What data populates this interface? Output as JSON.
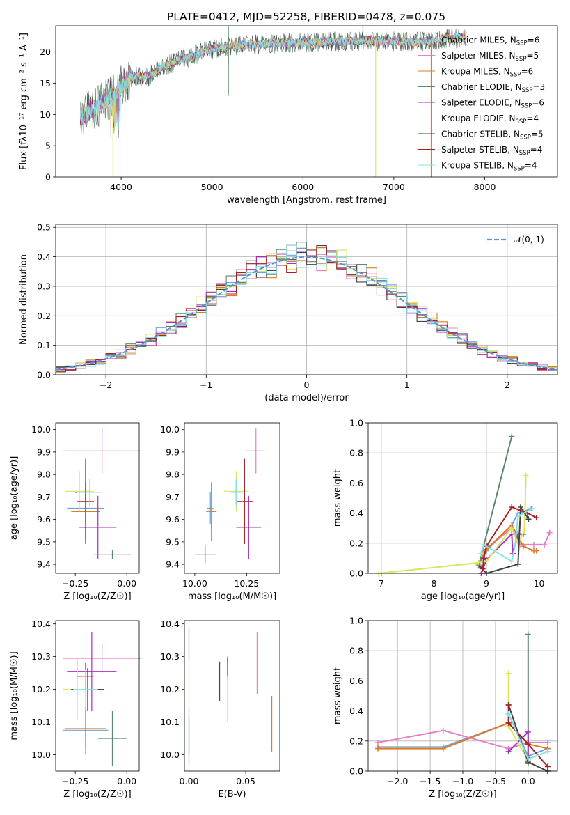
{
  "colors": {
    "Chabrier MILES": "#6ea0dc",
    "Salpeter MILES": "#e57fc8",
    "Kroupa MILES": "#e07b20",
    "Chabrier ELODIE": "#5a8a6e",
    "Salpeter ELODIE": "#a52ec2",
    "Kroupa ELODIE": "#d8e65a",
    "Chabrier STELIB": "#444444",
    "Salpeter STELIB": "#a81f22",
    "Kroupa STELIB": "#88e0e2",
    "grid": "#b0b0b0",
    "gauss": "#5b8fd8"
  },
  "chart_data": [
    {
      "id": "spectrum",
      "type": "line",
      "title": "PLATE=0412, MJD=52258, FIBERID=0478, z=0.075",
      "xlabel": "wavelength [Angstrom, rest frame]",
      "ylabel": "Flux [fλ10⁻¹⁷ erg cm⁻² s⁻¹ A⁻¹]",
      "xlim": [
        3280,
        8800
      ],
      "ylim": [
        0,
        24.2
      ],
      "xticks": [
        "4000",
        "5000",
        "6000",
        "7000",
        "8000"
      ],
      "yticks": [
        "0",
        "5",
        "10",
        "15",
        "20"
      ],
      "grid": false,
      "legend_position": "upper right",
      "legend": [
        {
          "label": "Chabrier MILES, N",
          "sub": "SSP",
          "post": "=6"
        },
        {
          "label": "Salpeter MILES, N",
          "sub": "SSP",
          "post": "=5"
        },
        {
          "label": "Kroupa MILES, N",
          "sub": "SSP",
          "post": "=6"
        },
        {
          "label": "Chabrier ELODIE, N",
          "sub": "SSP",
          "post": "=3"
        },
        {
          "label": "Salpeter ELODIE, N",
          "sub": "SSP",
          "post": "=6"
        },
        {
          "label": "Kroupa ELODIE, N",
          "sub": "SSP",
          "post": "=4"
        },
        {
          "label": "Chabrier STELIB, N",
          "sub": "SSP",
          "post": "=5"
        },
        {
          "label": "Salpeter STELIB, N",
          "sub": "SSP",
          "post": "=4"
        },
        {
          "label": "Kroupa STELIB, N",
          "sub": "SSP",
          "post": "=4"
        }
      ],
      "continuum": {
        "wavelength": [
          3550,
          3700,
          3850,
          3950,
          4050,
          4150,
          4300,
          4450,
          4600,
          4800,
          5000,
          5200,
          5400,
          5600,
          5800,
          6000,
          6200,
          6400,
          6600,
          6800,
          7000,
          7200,
          7400,
          7600,
          7800
        ],
        "flux": [
          9.5,
          11.0,
          12.5,
          13.2,
          15.5,
          16.2,
          16.0,
          17.5,
          18.5,
          19.5,
          20.5,
          21.0,
          21.2,
          21.3,
          21.4,
          21.5,
          21.6,
          21.7,
          21.8,
          21.8,
          21.7,
          21.6,
          21.8,
          22.2,
          22.3
        ]
      },
      "features": [
        {
          "wavelength": 3910,
          "flux": 0.0,
          "series": "Kroupa ELODIE"
        },
        {
          "wavelength": 5180,
          "flux": 13.0,
          "series": "Chabrier ELODIE"
        },
        {
          "wavelength": 6800,
          "flux": 0.0,
          "series": "Kroupa ELODIE"
        },
        {
          "wavelength": 7410,
          "flux": 0.0,
          "series": "Kroupa MILES"
        }
      ]
    },
    {
      "id": "residuals",
      "type": "histogram",
      "xlabel": "(data-model)/error",
      "ylabel": "Normed distribution",
      "xlim": [
        -2.5,
        2.5
      ],
      "ylim": [
        0,
        0.51
      ],
      "xticks": [
        "−2",
        "−1",
        "0",
        "1",
        "2"
      ],
      "yticks": [
        "0.0",
        "0.1",
        "0.2",
        "0.3",
        "0.4",
        "0.5"
      ],
      "grid": true,
      "bin_width": 0.1,
      "legend": [
        {
          "label": "𝒩(0, 1)"
        }
      ],
      "legend_position": "upper right"
    },
    {
      "id": "age_vs_Z",
      "type": "errorbar",
      "xlabel": "Z [log₁₀(Z/Z☉)]",
      "ylabel": "age  [log₁₀(age/yr)]",
      "xlim": [
        -0.345,
        0.06
      ],
      "ylim": [
        9.36,
        10.03
      ],
      "xticks": [
        "−0.25",
        "0.00"
      ],
      "yticks": [
        "9.4",
        "9.5",
        "9.6",
        "9.7",
        "9.8",
        "9.9",
        "10.0"
      ],
      "grid": false,
      "points": [
        {
          "series": "Chabrier MILES",
          "x": -0.2,
          "xerr": 0.09,
          "y": 9.65,
          "yerr": 0.07
        },
        {
          "series": "Salpeter MILES",
          "x": -0.12,
          "xerr": 0.19,
          "y": 9.905,
          "yerr": 0.1
        },
        {
          "series": "Kroupa MILES",
          "x": -0.2,
          "xerr": 0.07,
          "y": 9.635,
          "yerr": 0.13
        },
        {
          "series": "Chabrier ELODIE",
          "x": -0.07,
          "xerr": 0.09,
          "y": 9.445,
          "yerr": 0.02
        },
        {
          "series": "Salpeter ELODIE",
          "x": -0.14,
          "xerr": 0.09,
          "y": 9.565,
          "yerr": 0.14
        },
        {
          "series": "Kroupa ELODIE",
          "x": -0.23,
          "xerr": 0.07,
          "y": 9.725,
          "yerr": 0.09
        },
        {
          "series": "Chabrier STELIB",
          "x": -0.2,
          "xerr": 0.05,
          "y": 9.72,
          "yerr": 0.05
        },
        {
          "series": "Salpeter STELIB",
          "x": -0.2,
          "xerr": 0.04,
          "y": 9.68,
          "yerr": 0.19
        },
        {
          "series": "Kroupa STELIB",
          "x": -0.18,
          "xerr": 0.06,
          "y": 9.72,
          "yerr": 0.06
        }
      ]
    },
    {
      "id": "age_vs_mass",
      "type": "errorbar",
      "xlabel": "mass [log₁₀(M/M☉)]",
      "ylabel": "",
      "xlim": [
        9.95,
        10.41
      ],
      "ylim": [
        9.36,
        10.03
      ],
      "xticks": [
        "10.00",
        "10.25"
      ],
      "yticks": [
        "9.4",
        "9.5",
        "9.6",
        "9.7",
        "9.8",
        "9.9",
        "10.0"
      ],
      "grid": false,
      "points": [
        {
          "series": "Chabrier MILES",
          "x": 10.075,
          "xerr": 0.015,
          "y": 9.65,
          "yerr": 0.07
        },
        {
          "series": "Salpeter MILES",
          "x": 10.295,
          "xerr": 0.045,
          "y": 9.905,
          "yerr": 0.1
        },
        {
          "series": "Kroupa MILES",
          "x": 10.08,
          "xerr": 0.025,
          "y": 9.635,
          "yerr": 0.13
        },
        {
          "series": "Chabrier ELODIE",
          "x": 10.05,
          "xerr": 0.05,
          "y": 9.445,
          "yerr": 0.04
        },
        {
          "series": "Salpeter ELODIE",
          "x": 10.26,
          "xerr": 0.06,
          "y": 9.565,
          "yerr": 0.14
        },
        {
          "series": "Kroupa ELODIE",
          "x": 10.2,
          "xerr": 0.06,
          "y": 9.725,
          "yerr": 0.09
        },
        {
          "series": "Chabrier STELIB",
          "x": 10.2,
          "xerr": 0.03,
          "y": 9.72,
          "yerr": 0.05
        },
        {
          "series": "Salpeter STELIB",
          "x": 10.24,
          "xerr": 0.04,
          "y": 9.68,
          "yerr": 0.19
        },
        {
          "series": "Kroupa STELIB",
          "x": 10.2,
          "xerr": 0.03,
          "y": 9.72,
          "yerr": 0.06
        }
      ]
    },
    {
      "id": "weights_vs_age",
      "type": "line",
      "xlabel": "age  [log₁₀(age/yr)]",
      "ylabel": "mass weight",
      "xlim": [
        6.75,
        10.35
      ],
      "ylim": [
        0,
        1.0
      ],
      "xticks": [
        "7",
        "8",
        "9",
        "10"
      ],
      "yticks": [
        "0.0",
        "0.2",
        "0.4",
        "0.6",
        "0.8",
        "1.0"
      ],
      "grid": true,
      "series": [
        {
          "name": "Chabrier MILES",
          "x": [
            8.85,
            8.92,
            9.0,
            9.48,
            9.6,
            9.7,
            9.85
          ],
          "y": [
            0.06,
            0.1,
            0.15,
            0.32,
            0.4,
            0.41,
            0.43
          ]
        },
        {
          "name": "Salpeter MILES",
          "x": [
            8.95,
            9.48,
            9.65,
            9.9,
            10.1,
            10.2
          ],
          "y": [
            0.15,
            0.3,
            0.19,
            0.19,
            0.19,
            0.27
          ]
        },
        {
          "name": "Kroupa MILES",
          "x": [
            8.85,
            8.95,
            9.0,
            9.48,
            9.7,
            9.9,
            9.95
          ],
          "y": [
            0.05,
            0.13,
            0.16,
            0.32,
            0.18,
            0.15,
            0.15
          ]
        },
        {
          "name": "Chabrier ELODIE",
          "x": [
            8.85,
            9.48
          ],
          "y": [
            0.05,
            0.91
          ]
        },
        {
          "name": "Salpeter ELODIE",
          "x": [
            8.9,
            9.0,
            9.48,
            9.5,
            9.6,
            9.7
          ],
          "y": [
            0.0,
            0.09,
            0.26,
            0.13,
            0.26,
            0.26
          ]
        },
        {
          "name": "Kroupa ELODIE",
          "x": [
            6.95,
            8.85,
            9.0,
            9.48,
            9.6,
            9.72,
            9.75
          ],
          "y": [
            0.0,
            0.07,
            0.08,
            0.3,
            0.2,
            0.28,
            0.65
          ]
        },
        {
          "name": "Chabrier STELIB",
          "x": [
            8.87,
            9.0,
            9.6,
            9.65,
            9.8
          ],
          "y": [
            0.05,
            0.0,
            0.06,
            0.44,
            0.36
          ]
        },
        {
          "name": "Salpeter STELIB",
          "x": [
            8.93,
            8.95,
            9.0,
            9.48,
            9.78,
            9.95
          ],
          "y": [
            0.03,
            0.1,
            0.18,
            0.44,
            0.4,
            0.37
          ]
        },
        {
          "name": "Kroupa STELIB",
          "x": [
            8.9,
            8.95,
            9.48,
            9.55,
            9.6,
            9.87
          ],
          "y": [
            0.13,
            0.19,
            0.08,
            0.2,
            0.38,
            0.43
          ]
        }
      ]
    },
    {
      "id": "mass_vs_Z",
      "type": "errorbar",
      "xlabel": "Z [log₁₀(Z/Z☉)]",
      "ylabel": "mass [log₁₀(M/M☉)]",
      "xlim": [
        -0.345,
        0.06
      ],
      "ylim": [
        9.95,
        10.41
      ],
      "xticks": [
        "−0.25",
        "0.00"
      ],
      "yticks": [
        "10.0",
        "10.1",
        "10.2",
        "10.3",
        "10.4"
      ],
      "grid": false,
      "points": [
        {
          "series": "Chabrier MILES",
          "x": -0.2,
          "xerr": 0.11,
          "y": 10.075,
          "yerr": 0.075
        },
        {
          "series": "Salpeter MILES",
          "x": -0.12,
          "xerr": 0.19,
          "y": 10.295,
          "yerr": 0.045
        },
        {
          "series": "Kroupa MILES",
          "x": -0.2,
          "xerr": 0.1,
          "y": 10.08,
          "yerr": 0.06
        },
        {
          "series": "Chabrier ELODIE",
          "x": -0.07,
          "xerr": 0.07,
          "y": 10.05,
          "yerr": 0.085
        },
        {
          "series": "Salpeter ELODIE",
          "x": -0.17,
          "xerr": 0.12,
          "y": 10.255,
          "yerr": 0.12
        },
        {
          "series": "Kroupa ELODIE",
          "x": -0.24,
          "xerr": 0.07,
          "y": 10.2,
          "yerr": 0.095
        },
        {
          "series": "Chabrier STELIB",
          "x": -0.19,
          "xerr": 0.08,
          "y": 10.2,
          "yerr": 0.065
        },
        {
          "series": "Salpeter STELIB",
          "x": -0.2,
          "xerr": 0.04,
          "y": 10.24,
          "yerr": 0.04
        },
        {
          "series": "Kroupa STELIB",
          "x": -0.2,
          "xerr": 0.06,
          "y": 10.2,
          "yerr": 0.06
        }
      ]
    },
    {
      "id": "mass_vs_ebv",
      "type": "errorbar",
      "xlabel": "E(B-V)",
      "ylabel": "",
      "xlim": [
        -0.004,
        0.08
      ],
      "ylim": [
        9.95,
        10.41
      ],
      "xticks": [
        "0.00",
        "0.05"
      ],
      "yticks": [
        "10.0",
        "10.1",
        "10.2",
        "10.3",
        "10.4"
      ],
      "grid": false,
      "points": [
        {
          "series": "Chabrier MILES",
          "x": 0.0,
          "xerr": 0.0,
          "y": 10.075,
          "yerr": 0.075
        },
        {
          "series": "Salpeter MILES",
          "x": 0.06,
          "xerr": 0.0,
          "y": 10.28,
          "yerr": 0.095
        },
        {
          "series": "Kroupa MILES",
          "x": 0.073,
          "xerr": 0.0,
          "y": 10.095,
          "yerr": 0.085
        },
        {
          "series": "Chabrier ELODIE",
          "x": 0.0,
          "xerr": 0.0,
          "y": 10.04,
          "yerr": 0.07
        },
        {
          "series": "Salpeter ELODIE",
          "x": 0.0,
          "xerr": 0.0,
          "y": 10.34,
          "yerr": 0.05
        },
        {
          "series": "Kroupa ELODIE",
          "x": 0.0,
          "xerr": 0.0,
          "y": 10.2,
          "yerr": 0.095
        },
        {
          "series": "Chabrier STELIB",
          "x": 0.027,
          "xerr": 0.0,
          "y": 10.225,
          "yerr": 0.06
        },
        {
          "series": "Salpeter STELIB",
          "x": 0.034,
          "xerr": 0.0,
          "y": 10.265,
          "yerr": 0.035
        },
        {
          "series": "Kroupa STELIB",
          "x": 0.034,
          "xerr": 0.0,
          "y": 10.17,
          "yerr": 0.07
        }
      ]
    },
    {
      "id": "weights_vs_Z",
      "type": "line",
      "xlabel": "Z [log₁₀(Z/Z☉)]",
      "ylabel": "mass weight",
      "xlim": [
        -2.45,
        0.45
      ],
      "ylim": [
        0,
        1.0
      ],
      "xticks": [
        "−2.0",
        "−1.5",
        "−1.0",
        "−0.5",
        "0.0"
      ],
      "yticks": [
        "0.0",
        "0.2",
        "0.4",
        "0.6",
        "0.8",
        "1.0"
      ],
      "grid": true,
      "series": [
        {
          "name": "Chabrier MILES",
          "x": [
            -2.3,
            -1.3,
            -0.3,
            -0.3,
            0.0,
            0.3
          ],
          "y": [
            0.16,
            0.16,
            0.32,
            0.38,
            0.1,
            0.15
          ]
        },
        {
          "name": "Salpeter MILES",
          "x": [
            -2.3,
            -1.3,
            -0.3,
            0.0,
            0.3
          ],
          "y": [
            0.19,
            0.27,
            0.15,
            0.19,
            0.19
          ]
        },
        {
          "name": "Kroupa MILES",
          "x": [
            -2.3,
            -1.3,
            -0.3,
            0.0,
            0.3
          ],
          "y": [
            0.15,
            0.15,
            0.32,
            0.18,
            0.15
          ]
        },
        {
          "name": "Chabrier ELODIE",
          "x": [
            0.0,
            0.0
          ],
          "y": [
            0.05,
            0.91
          ]
        },
        {
          "name": "Salpeter ELODIE",
          "x": [
            -0.3,
            0.0,
            0.0
          ],
          "y": [
            0.13,
            0.26,
            0.09
          ]
        },
        {
          "name": "Kroupa ELODIE",
          "x": [
            -0.3,
            -0.3,
            0.0
          ],
          "y": [
            0.65,
            0.3,
            0.07
          ]
        },
        {
          "name": "Chabrier STELIB",
          "x": [
            -0.3,
            0.0,
            0.3
          ],
          "y": [
            0.44,
            0.06,
            0.0
          ]
        },
        {
          "name": "Salpeter STELIB",
          "x": [
            -0.3,
            -0.3,
            0.0,
            0.3
          ],
          "y": [
            0.44,
            0.32,
            0.18,
            0.03
          ]
        },
        {
          "name": "Kroupa STELIB",
          "x": [
            -0.3,
            0.0,
            0.3
          ],
          "y": [
            0.38,
            0.08,
            0.13
          ]
        }
      ]
    }
  ]
}
